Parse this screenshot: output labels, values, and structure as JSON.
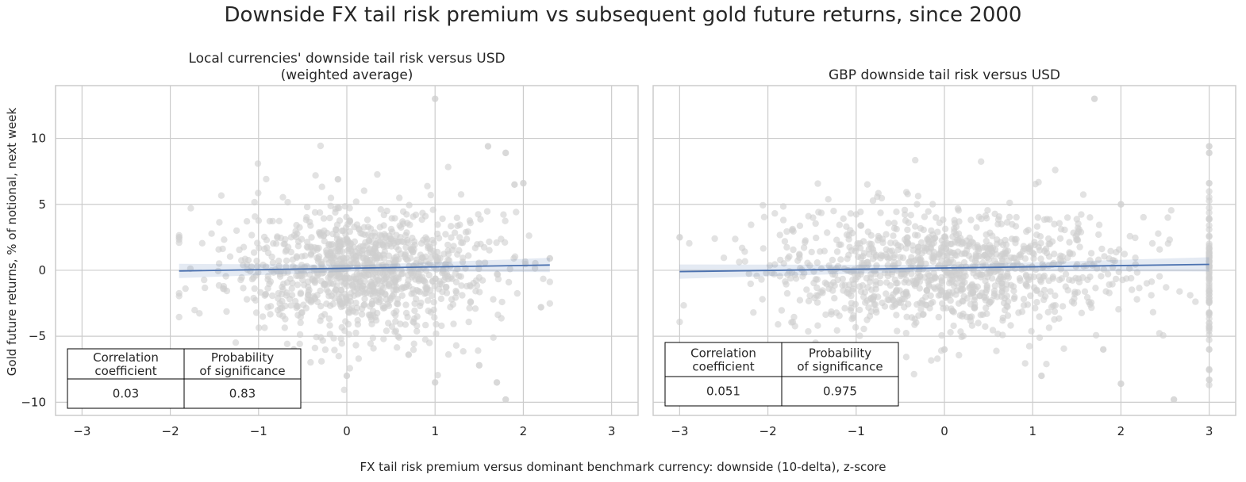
{
  "figure": {
    "suptitle": "Downside FX tail risk premium vs subsequent gold future returns, since 2000",
    "xlabel": "FX tail risk premium versus dominant benchmark currency: downside (10-delta), z-score",
    "ylabel": "Gold future returns, % of notional, next week"
  },
  "colors": {
    "scatter": "#cfcfcf",
    "regression_line": "#4c72b0",
    "grid": "#cccccc",
    "spine": "#cccccc",
    "text": "#262626"
  },
  "chart_data": [
    {
      "type": "scatter",
      "title": "Local currencies' downside tail risk versus USD\n(weighted average)",
      "xlim": [
        -3.3,
        3.3
      ],
      "ylim": [
        -11,
        14
      ],
      "xticks": [
        -3,
        -2,
        -1,
        0,
        1,
        2,
        3
      ],
      "yticks": [
        -10,
        -5,
        0,
        5,
        10
      ],
      "grid": true,
      "x_range": [
        -1.9,
        2.3
      ],
      "regression": {
        "x": [
          -1.9,
          2.3
        ],
        "y": [
          -0.05,
          0.4
        ]
      },
      "points_sample": [
        {
          "x": 1.0,
          "y": 13.0
        },
        {
          "x": 1.6,
          "y": 9.4
        },
        {
          "x": 1.8,
          "y": 8.9
        },
        {
          "x": 1.9,
          "y": 6.5
        },
        {
          "x": 2.0,
          "y": 6.6
        },
        {
          "x": -0.1,
          "y": 6.9
        },
        {
          "x": -1.9,
          "y": 2.5
        },
        {
          "x": 2.3,
          "y": 0.9
        },
        {
          "x": 2.2,
          "y": -2.8
        },
        {
          "x": 1.8,
          "y": -9.8
        },
        {
          "x": 1.7,
          "y": -8.5
        },
        {
          "x": 1.0,
          "y": -8.5
        },
        {
          "x": 0.0,
          "y": -8.0
        },
        {
          "x": -1.2,
          "y": -6.9
        },
        {
          "x": 1.5,
          "y": -7.2
        },
        {
          "x": 0.7,
          "y": -6.4
        },
        {
          "x": -0.6,
          "y": -6.0
        }
      ],
      "stats_table": {
        "headers": [
          "Correlation\ncoefficient",
          "Probability\nof significance"
        ],
        "values": [
          "0.03",
          "0.83"
        ]
      }
    },
    {
      "type": "scatter",
      "title": "GBP downside tail risk versus USD",
      "xlim": [
        -3.3,
        3.3
      ],
      "ylim": [
        -11,
        14
      ],
      "xticks": [
        -3,
        -2,
        -1,
        0,
        1,
        2,
        3
      ],
      "yticks": [
        -10,
        -5,
        0,
        5,
        10
      ],
      "grid": true,
      "x_range": [
        -3.0,
        3.0
      ],
      "regression": {
        "x": [
          -3.0,
          3.0
        ],
        "y": [
          -0.1,
          0.45
        ]
      },
      "points_sample": [
        {
          "x": 1.7,
          "y": 13.0
        },
        {
          "x": 3.0,
          "y": 9.4
        },
        {
          "x": 3.0,
          "y": 8.9
        },
        {
          "x": 3.0,
          "y": 6.6
        },
        {
          "x": 2.0,
          "y": 5.0
        },
        {
          "x": -3.0,
          "y": 2.5
        },
        {
          "x": 3.0,
          "y": -4.0
        },
        {
          "x": 3.0,
          "y": -6.0
        },
        {
          "x": 3.0,
          "y": -8.3
        },
        {
          "x": 2.6,
          "y": -9.8
        },
        {
          "x": 2.0,
          "y": -8.6
        },
        {
          "x": 1.1,
          "y": -8.0
        },
        {
          "x": 0.0,
          "y": -6.0
        },
        {
          "x": -1.9,
          "y": -8.3
        },
        {
          "x": 1.8,
          "y": -6.0
        }
      ],
      "stats_table": {
        "headers": [
          "Correlation\ncoefficient",
          "Probability\nof significance"
        ],
        "values": [
          "0.051",
          "0.975"
        ]
      }
    }
  ]
}
